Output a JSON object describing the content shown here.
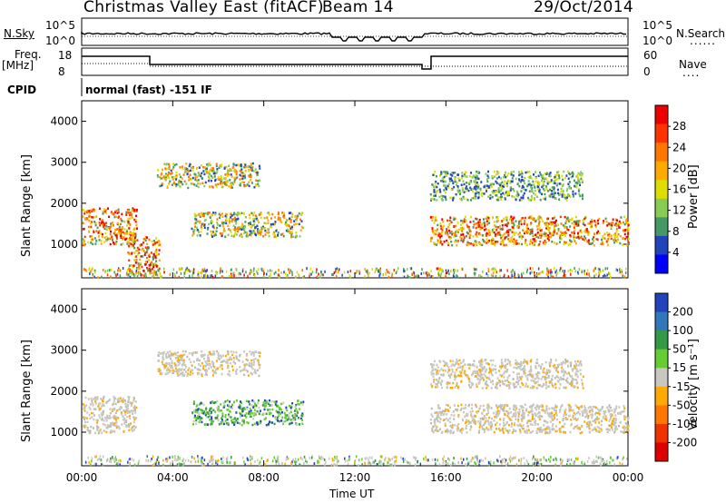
{
  "header": {
    "station": "Christmas Valley East (fitACF)",
    "beam": "Beam 14",
    "date": "29/Oct/2014"
  },
  "top_panels": {
    "nsky_label": "N.Sky",
    "nsearch_label": "N.Search",
    "nsky_ticks": [
      "10^5",
      "10^0"
    ],
    "nsearch_ticks": [
      "10^5",
      "10^0"
    ],
    "freq_label_1": "Freq.",
    "freq_label_2": "[MHz]",
    "freq_ticks": [
      "18",
      "8"
    ],
    "nave_label": "Nave",
    "nave_ticks": [
      "60",
      "0"
    ],
    "cpid_label": "CPID",
    "cpid_text": "normal (fast) -151 IF"
  },
  "chart_data": [
    {
      "type": "heatmap",
      "title": "",
      "xlabel": "",
      "ylabel": "Slant Range [km]",
      "x_ticks": [
        "00:00",
        "04:00",
        "08:00",
        "12:00",
        "16:00",
        "20:00",
        "00:00"
      ],
      "y_ticks": [
        1000,
        2000,
        3000,
        4000
      ],
      "ylim": [
        180,
        4500
      ],
      "colorbar": {
        "label": "Power [dB]",
        "ticks": [
          "28",
          "24",
          "20",
          "16",
          "12",
          "8",
          "4"
        ],
        "colors": [
          "#ee0000",
          "#ff3300",
          "#ff7700",
          "#ffaa00",
          "#dddd00",
          "#88cc55",
          "#449966",
          "#2244bb",
          "#0000ff"
        ]
      },
      "echo_regions": [
        {
          "t0": 0.0,
          "t1": 2.4,
          "r0": 1000,
          "r1": 1900,
          "level": "strong"
        },
        {
          "t0": 2.0,
          "t1": 3.4,
          "r0": 250,
          "r1": 1200,
          "level": "strong"
        },
        {
          "t0": 3.3,
          "t1": 7.8,
          "r0": 2400,
          "r1": 3000,
          "level": "medium"
        },
        {
          "t0": 4.8,
          "t1": 9.7,
          "r0": 1200,
          "r1": 1800,
          "level": "medium"
        },
        {
          "t0": 15.3,
          "t1": 24.0,
          "r0": 1000,
          "r1": 1700,
          "level": "strong"
        },
        {
          "t0": 15.3,
          "t1": 22.0,
          "r0": 2100,
          "r1": 2800,
          "level": "weak"
        }
      ]
    },
    {
      "type": "heatmap",
      "title": "",
      "xlabel": "Time UT",
      "ylabel": "Slant Range [km]",
      "x_ticks": [
        "00:00",
        "04:00",
        "08:00",
        "12:00",
        "16:00",
        "20:00",
        "00:00"
      ],
      "y_ticks": [
        1000,
        2000,
        3000,
        4000
      ],
      "ylim": [
        180,
        4500
      ],
      "colorbar": {
        "label": "Velocity [m s⁻¹]",
        "ticks": [
          "200",
          "100",
          "50",
          "15",
          "-15",
          "-50",
          "-100",
          "-200"
        ],
        "colors": [
          "#2244bb",
          "#3377bb",
          "#339944",
          "#66cc33",
          "#c8c8c0",
          "#ffaa00",
          "#ff7700",
          "#ee3300",
          "#dd0000"
        ]
      },
      "echo_regions": [
        {
          "t0": 0.0,
          "t1": 2.4,
          "r0": 1000,
          "r1": 1900,
          "level": "ground"
        },
        {
          "t0": 3.3,
          "t1": 7.8,
          "r0": 2400,
          "r1": 3000,
          "level": "ground"
        },
        {
          "t0": 4.8,
          "t1": 9.7,
          "r0": 1200,
          "r1": 1800,
          "level": "positive"
        },
        {
          "t0": 15.3,
          "t1": 24.0,
          "r0": 1000,
          "r1": 1700,
          "level": "ground"
        },
        {
          "t0": 15.3,
          "t1": 22.0,
          "r0": 2100,
          "r1": 2800,
          "level": "ground"
        }
      ]
    }
  ]
}
